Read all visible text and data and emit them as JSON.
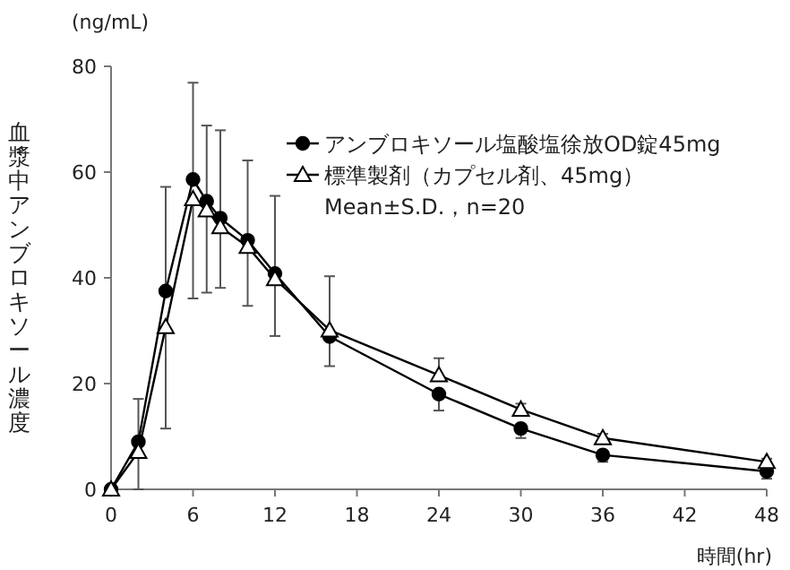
{
  "chart_data": {
    "type": "line",
    "ylabel": "血漿中アンブロキソール濃度",
    "xlabel": "時間(hr)",
    "annotations": [
      "(ng/mL)",
      "Mean±S.D.，n=20"
    ],
    "x": [
      0,
      2,
      4,
      6,
      7,
      8,
      10,
      12,
      16,
      24,
      30,
      36,
      48
    ],
    "series": [
      {
        "name": "アンブロキソール塩酸塩徐放OD錠45mg",
        "color": "#000000",
        "marker": "circle",
        "values": [
          0,
          9.0,
          37.5,
          58.6,
          54.5,
          51.3,
          47.1,
          40.8,
          28.9,
          18.0,
          11.5,
          6.5,
          3.4
        ],
        "errors": [
          null,
          [
            9.0,
            17.1
          ],
          [
            37.5,
            57.2
          ],
          [
            58.6,
            76.9
          ],
          [
            54.5,
            68.8
          ],
          [
            51.3,
            67.9
          ],
          [
            47.1,
            62.2
          ],
          [
            40.8,
            55.5
          ],
          [
            23.3,
            28.9
          ],
          [
            14.9,
            18.0
          ],
          [
            9.7,
            11.5
          ],
          [
            5.2,
            6.5
          ],
          [
            2.0,
            3.4
          ]
        ]
      },
      {
        "name": "標準製剤（カプセル剤、45mg）",
        "color": "#000000",
        "marker": "triangle",
        "values": [
          0,
          7.1,
          30.7,
          54.9,
          52.8,
          49.6,
          45.9,
          39.8,
          30.1,
          21.6,
          15.1,
          9.7,
          5.2
        ],
        "errors": [
          null,
          [
            0,
            7.1
          ],
          [
            11.5,
            30.7
          ],
          [
            36.1,
            54.9
          ],
          [
            37.2,
            52.8
          ],
          [
            38.1,
            49.6
          ],
          [
            34.7,
            45.9
          ],
          [
            29.0,
            39.8
          ],
          [
            30.1,
            40.3
          ],
          [
            21.6,
            24.8
          ],
          [
            15.1,
            16.2
          ],
          [
            9.7,
            10.5
          ],
          [
            5.2,
            5.8
          ]
        ]
      }
    ],
    "xlim": [
      0,
      48
    ],
    "xticks": [
      0,
      6,
      12,
      18,
      24,
      30,
      36,
      42,
      48
    ],
    "ylim": [
      0,
      80
    ],
    "yticks": [
      0,
      20,
      40,
      60,
      80
    ],
    "grid": false,
    "legend": "top right"
  }
}
